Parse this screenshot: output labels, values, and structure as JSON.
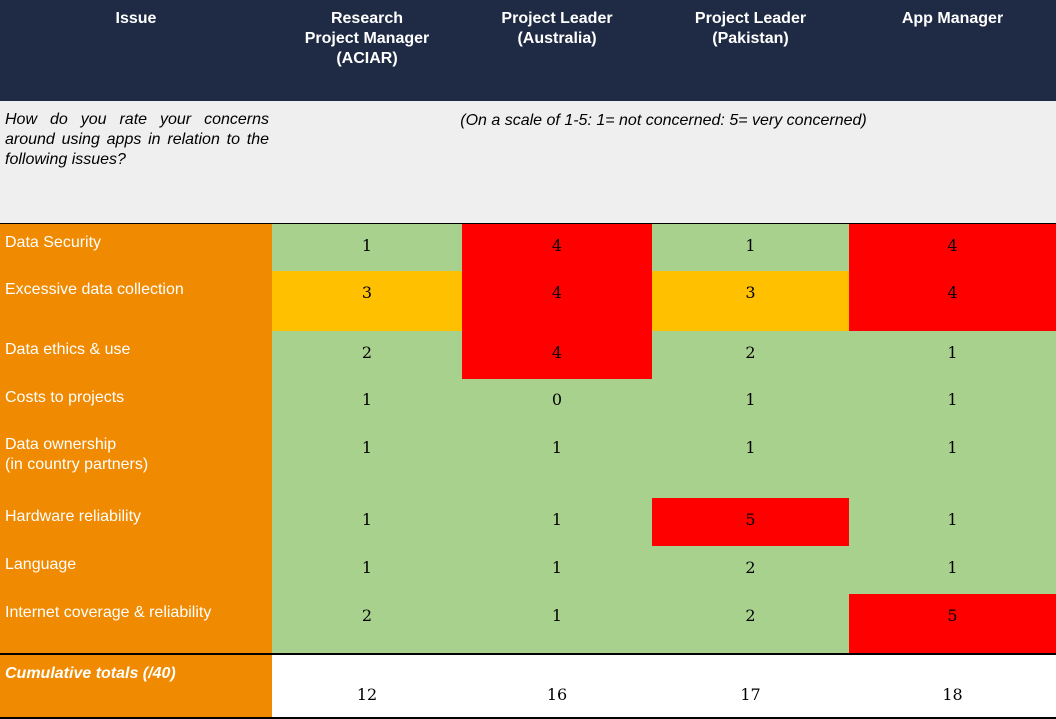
{
  "headers": [
    "Issue",
    "Research Project Manager (ACIAR)",
    "Project Leader (Australia)",
    "Project Leader (Pakistan)",
    "App Manager"
  ],
  "question": "How do you rate your concerns around using apps in relation to the following issues?",
  "scale_note": "(On a scale of 1-5: 1= not concerned: 5= very concerned)",
  "rows": [
    {
      "issue": "Data Security",
      "values": [
        "1",
        "4",
        "1",
        "4"
      ]
    },
    {
      "issue": "Excessive data collection",
      "values": [
        "3",
        "4",
        "3",
        "4"
      ]
    },
    {
      "issue": "Data ethics & use",
      "values": [
        "2",
        "4",
        "2",
        "1"
      ]
    },
    {
      "issue": "Costs to projects",
      "values": [
        "1",
        "0",
        "1",
        "1"
      ]
    },
    {
      "issue": "Data ownership (in country partners)",
      "issue_line2": "(in country partners)",
      "issue_line1": "Data ownership",
      "values": [
        "1",
        "1",
        "1",
        "1"
      ]
    },
    {
      "issue": "Hardware reliability",
      "values": [
        "1",
        "1",
        "5",
        "1"
      ]
    },
    {
      "issue": "Language",
      "values": [
        "1",
        "1",
        "2",
        "1"
      ]
    },
    {
      "issue": "Internet coverage & reliability",
      "values": [
        "2",
        "1",
        "2",
        "5"
      ]
    }
  ],
  "totals": {
    "label": "Cumulative totals (/40)",
    "values": [
      "12",
      "16",
      "17",
      "18"
    ]
  },
  "colors": {
    "header": "#1f2a44",
    "issue": "#f08a00",
    "low": "#a9d18e",
    "medium": "#ffc000",
    "high": "#ff0000",
    "question_bg": "#efefef"
  }
}
